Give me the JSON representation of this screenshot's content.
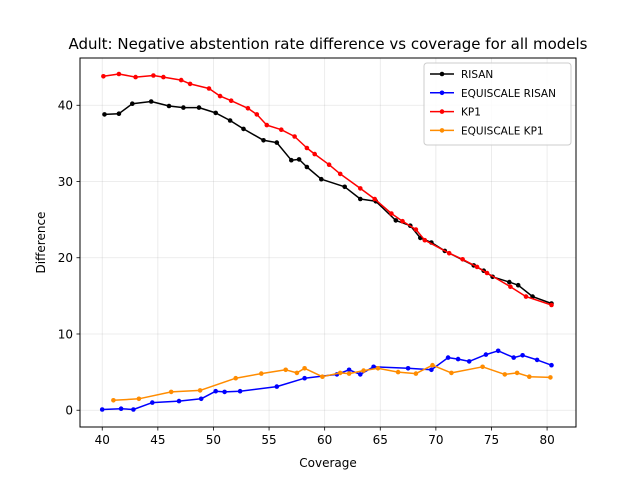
{
  "chart_data": {
    "type": "line",
    "title": "Adult: Negative abstention rate difference vs coverage for all models",
    "xlabel": "Coverage",
    "ylabel": "Difference",
    "xlim": [
      38.0,
      82.6
    ],
    "ylim": [
      -2.2,
      46.2
    ],
    "xticks": [
      40,
      45,
      50,
      55,
      60,
      65,
      70,
      75,
      80
    ],
    "yticks": [
      0,
      10,
      20,
      30,
      40
    ],
    "grid": true,
    "legend_position": "top-right",
    "series": [
      {
        "name": "RISAN",
        "color": "#000000",
        "points": [
          [
            40.2,
            38.8
          ],
          [
            41.5,
            38.9
          ],
          [
            42.7,
            40.2
          ],
          [
            44.4,
            40.5
          ],
          [
            46.0,
            39.9
          ],
          [
            47.3,
            39.7
          ],
          [
            48.7,
            39.7
          ],
          [
            50.2,
            39.0
          ],
          [
            51.5,
            38.0
          ],
          [
            52.7,
            36.9
          ],
          [
            54.5,
            35.4
          ],
          [
            55.7,
            35.1
          ],
          [
            57.0,
            32.8
          ],
          [
            57.7,
            32.9
          ],
          [
            58.4,
            31.9
          ],
          [
            59.7,
            30.3
          ],
          [
            61.8,
            29.3
          ],
          [
            63.2,
            27.7
          ],
          [
            64.6,
            27.4
          ],
          [
            66.4,
            24.9
          ],
          [
            67.7,
            24.2
          ],
          [
            68.6,
            22.6
          ],
          [
            69.6,
            22.0
          ],
          [
            70.8,
            20.9
          ],
          [
            73.4,
            19.0
          ],
          [
            74.3,
            18.3
          ],
          [
            75.1,
            17.5
          ],
          [
            76.6,
            16.8
          ],
          [
            77.4,
            16.4
          ],
          [
            78.7,
            14.9
          ],
          [
            80.4,
            14.0
          ]
        ]
      },
      {
        "name": "EQUISCALE RISAN",
        "color": "#0000ff",
        "points": [
          [
            40.0,
            0.1
          ],
          [
            41.7,
            0.2
          ],
          [
            42.8,
            0.1
          ],
          [
            44.5,
            1.0
          ],
          [
            46.9,
            1.2
          ],
          [
            48.9,
            1.5
          ],
          [
            50.2,
            2.5
          ],
          [
            51.0,
            2.4
          ],
          [
            52.4,
            2.5
          ],
          [
            55.7,
            3.1
          ],
          [
            58.2,
            4.2
          ],
          [
            61.1,
            4.7
          ],
          [
            62.2,
            5.3
          ],
          [
            63.2,
            4.7
          ],
          [
            64.4,
            5.7
          ],
          [
            67.5,
            5.5
          ],
          [
            69.6,
            5.3
          ],
          [
            71.1,
            6.9
          ],
          [
            72.0,
            6.7
          ],
          [
            73.0,
            6.4
          ],
          [
            74.5,
            7.3
          ],
          [
            75.6,
            7.8
          ],
          [
            77.0,
            6.9
          ],
          [
            77.8,
            7.2
          ],
          [
            79.1,
            6.6
          ],
          [
            80.4,
            5.9
          ]
        ]
      },
      {
        "name": "KP1",
        "color": "#ff0000",
        "points": [
          [
            40.1,
            43.8
          ],
          [
            41.5,
            44.1
          ],
          [
            43.0,
            43.7
          ],
          [
            44.6,
            43.9
          ],
          [
            45.5,
            43.7
          ],
          [
            47.1,
            43.3
          ],
          [
            47.9,
            42.8
          ],
          [
            49.6,
            42.2
          ],
          [
            50.6,
            41.2
          ],
          [
            51.6,
            40.6
          ],
          [
            53.1,
            39.6
          ],
          [
            53.9,
            38.8
          ],
          [
            54.8,
            37.4
          ],
          [
            56.1,
            36.8
          ],
          [
            57.3,
            35.9
          ],
          [
            58.4,
            34.4
          ],
          [
            59.1,
            33.6
          ],
          [
            60.4,
            32.2
          ],
          [
            61.4,
            31.0
          ],
          [
            63.2,
            29.1
          ],
          [
            64.5,
            27.7
          ],
          [
            66.0,
            25.8
          ],
          [
            67.0,
            24.8
          ],
          [
            68.2,
            23.7
          ],
          [
            69.0,
            22.3
          ],
          [
            71.2,
            20.6
          ],
          [
            72.4,
            19.8
          ],
          [
            73.7,
            18.8
          ],
          [
            74.6,
            18.0
          ],
          [
            76.7,
            16.2
          ],
          [
            78.1,
            14.9
          ],
          [
            80.4,
            13.8
          ]
        ]
      },
      {
        "name": "EQUISCALE KP1",
        "color": "#ff8c00",
        "points": [
          [
            41.0,
            1.3
          ],
          [
            43.3,
            1.5
          ],
          [
            46.2,
            2.4
          ],
          [
            48.8,
            2.6
          ],
          [
            52.0,
            4.2
          ],
          [
            54.3,
            4.8
          ],
          [
            56.5,
            5.3
          ],
          [
            57.5,
            4.9
          ],
          [
            58.2,
            5.5
          ],
          [
            59.8,
            4.4
          ],
          [
            61.4,
            4.9
          ],
          [
            62.2,
            4.8
          ],
          [
            63.5,
            5.2
          ],
          [
            64.8,
            5.5
          ],
          [
            66.6,
            5.0
          ],
          [
            68.2,
            4.8
          ],
          [
            69.7,
            5.9
          ],
          [
            71.4,
            4.9
          ],
          [
            74.2,
            5.7
          ],
          [
            76.2,
            4.7
          ],
          [
            77.3,
            4.9
          ],
          [
            78.4,
            4.4
          ],
          [
            80.3,
            4.3
          ]
        ]
      }
    ]
  }
}
